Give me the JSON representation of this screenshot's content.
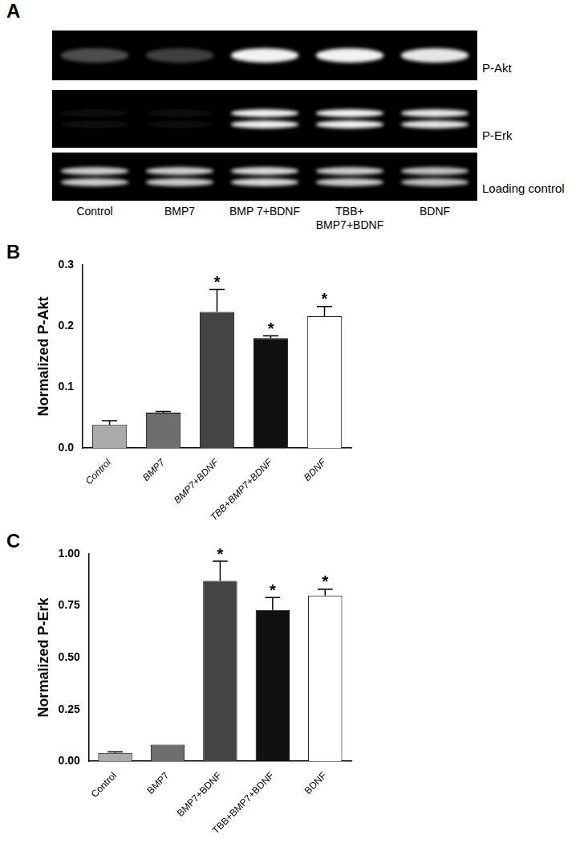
{
  "blot": {
    "panel_label": "A",
    "rows": [
      {
        "label": "P-Akt",
        "bands": 1,
        "intensity": [
          0.3,
          0.25,
          0.95,
          0.95,
          0.9
        ]
      },
      {
        "label": "P-Erk",
        "bands": 2,
        "intensity": [
          0.05,
          0.05,
          0.95,
          0.95,
          0.9
        ]
      },
      {
        "label": "Loading control",
        "bands": 2,
        "intensity": [
          0.8,
          0.8,
          0.85,
          0.8,
          0.75
        ]
      }
    ],
    "lanes": [
      [
        "Control"
      ],
      [
        "BMP7"
      ],
      [
        "BMP 7+BDNF"
      ],
      [
        "TBB+",
        "BMP7+BDNF"
      ],
      [
        "BDNF"
      ]
    ]
  },
  "chart_data": [
    {
      "type": "bar",
      "panel_label": "B",
      "y_label": "Normalized P-Akt",
      "categories": [
        "Control",
        "BMP7",
        "BMP7+BDNF",
        "TBB+BMP7+BDNF",
        "BDNF"
      ],
      "values": [
        0.038,
        0.058,
        0.223,
        0.18,
        0.216
      ],
      "errors": [
        0.007,
        0.002,
        0.037,
        0.004,
        0.016
      ],
      "annotations": [
        null,
        null,
        "*",
        "*",
        "*"
      ],
      "colors": [
        "#aaaaaa",
        "#6e6e6e",
        "#444444",
        "#111111",
        "#ffffff"
      ],
      "ylim": [
        0,
        0.3
      ],
      "yticks": [
        {
          "value": 0,
          "label": "0.0"
        },
        0.1,
        0.2,
        0.3
      ],
      "grid": false
    },
    {
      "type": "bar",
      "panel_label": "C",
      "y_label": "Normalized P-Erk",
      "categories": [
        "Control",
        "BMP7",
        "BMP7+BDNF",
        "TBB+BMP7+BDNF",
        "BDNF"
      ],
      "values": [
        0.04,
        0.08,
        0.87,
        0.73,
        0.8
      ],
      "errors": [
        0.005,
        0,
        0.095,
        0.06,
        0.03
      ],
      "annotations": [
        null,
        null,
        "*",
        "*",
        "*"
      ],
      "colors": [
        "#aaaaaa",
        "#6e6e6e",
        "#444444",
        "#111111",
        "#ffffff"
      ],
      "ylim": [
        0,
        1.0
      ],
      "yticks": [
        {
          "value": 0,
          "label": "0.00"
        },
        {
          "value": 0.25,
          "label": "0.25"
        },
        {
          "value": 0.5,
          "label": "0.50"
        },
        {
          "value": 0.75,
          "label": "0.75"
        },
        {
          "value": 1.0,
          "label": "1.00"
        }
      ],
      "grid": false
    }
  ]
}
